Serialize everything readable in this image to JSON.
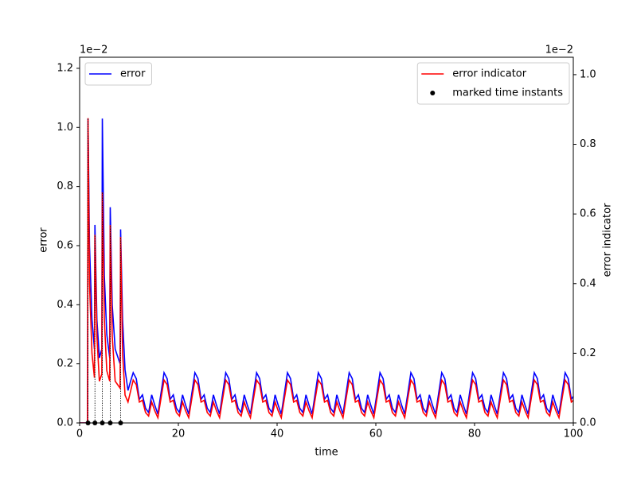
{
  "chart_data": {
    "type": "line",
    "xlabel": "time",
    "ylabel": "error",
    "y2label": "error indicator",
    "y_offset_label": "1e−2",
    "y2_offset_label": "1e−2",
    "xlim": [
      0,
      100
    ],
    "xticks": [
      0,
      20,
      40,
      60,
      80,
      100
    ],
    "ylim": [
      0,
      1.2375
    ],
    "yticks": [
      {
        "value": 0,
        "label": "0.0"
      },
      0.2,
      0.4,
      0.6,
      0.8,
      {
        "value": 1,
        "label": "1.0"
      },
      1.2
    ],
    "y2lim": [
      0,
      1.05
    ],
    "y2ticks": [
      {
        "value": 0,
        "label": "0.0"
      },
      0.2,
      0.4,
      0.6,
      0.8,
      {
        "value": 1,
        "label": "1.0"
      }
    ],
    "legend": {
      "y": "upper left",
      "y2": "upper right"
    },
    "x": [
      0,
      1.6,
      1.7,
      2.0,
      2.5,
      3.0,
      3.1,
      3.5,
      4.0,
      4.5,
      4.6,
      5.0,
      5.5,
      6.1,
      6.2,
      6.6,
      7.2,
      8.2,
      8.3,
      8.7,
      9.2,
      9.8,
      10.3,
      10.85,
      11.475,
      12.1,
      12.725,
      13.35,
      13.975,
      14.6,
      15.225,
      15.85,
      16.475,
      17.1,
      17.725,
      18.35,
      18.975,
      19.6,
      20.225,
      20.85,
      21.475,
      22.1,
      22.725,
      23.35,
      23.975,
      24.6,
      25.225,
      25.85,
      26.475,
      27.1,
      27.725,
      28.35,
      28.975,
      29.6,
      30.225,
      30.85,
      31.475,
      32.1,
      32.725,
      33.35,
      33.975,
      34.6,
      35.225,
      35.85,
      36.475,
      37.1,
      37.725,
      38.35,
      38.975,
      39.6,
      40.225,
      40.85,
      41.475,
      42.1,
      42.725,
      43.35,
      43.975,
      44.6,
      45.225,
      45.85,
      46.475,
      47.1,
      47.725,
      48.35,
      48.975,
      49.6,
      50.225,
      50.85,
      51.475,
      52.1,
      52.725,
      53.35,
      53.975,
      54.6,
      55.225,
      55.85,
      56.475,
      57.1,
      57.725,
      58.35,
      58.975,
      59.6,
      60.225,
      60.85,
      61.475,
      62.1,
      62.725,
      63.35,
      63.975,
      64.6,
      65.225,
      65.85,
      66.475,
      67.1,
      67.725,
      68.35,
      68.975,
      69.6,
      70.225,
      70.85,
      71.475,
      72.1,
      72.725,
      73.35,
      73.975,
      74.6,
      75.225,
      75.85,
      76.475,
      77.1,
      77.725,
      78.35,
      78.975,
      79.6,
      80.225,
      80.85,
      81.475,
      82.1,
      82.725,
      83.35,
      83.975,
      84.6,
      85.225,
      85.85,
      86.475,
      87.1,
      87.725,
      88.35,
      88.975,
      89.6,
      90.225,
      90.85,
      91.475,
      92.1,
      92.725,
      93.35,
      93.975,
      94.6,
      95.225,
      95.85,
      96.475,
      97.1,
      97.725,
      98.35,
      98.975,
      99.6,
      100
    ],
    "series": [
      {
        "name": "error",
        "color": "#0000ff",
        "axis": "y",
        "values": [
          0,
          0,
          1.03,
          0.6,
          0.35,
          0.25,
          0.67,
          0.35,
          0.22,
          0.25,
          1.03,
          0.5,
          0.3,
          0.22,
          0.73,
          0.4,
          0.25,
          0.2,
          0.655,
          0.35,
          0.18,
          0.11,
          0.14,
          0.17,
          0.15,
          0.08,
          0.095,
          0.05,
          0.035,
          0.095,
          0.06,
          0.03,
          0.1,
          0.17,
          0.15,
          0.08,
          0.095,
          0.05,
          0.035,
          0.095,
          0.06,
          0.03,
          0.1,
          0.17,
          0.15,
          0.08,
          0.095,
          0.05,
          0.035,
          0.095,
          0.06,
          0.03,
          0.1,
          0.17,
          0.15,
          0.08,
          0.095,
          0.05,
          0.035,
          0.095,
          0.06,
          0.03,
          0.1,
          0.17,
          0.15,
          0.08,
          0.095,
          0.05,
          0.035,
          0.095,
          0.06,
          0.03,
          0.1,
          0.17,
          0.15,
          0.08,
          0.095,
          0.05,
          0.035,
          0.095,
          0.06,
          0.03,
          0.1,
          0.17,
          0.15,
          0.08,
          0.095,
          0.05,
          0.035,
          0.095,
          0.06,
          0.03,
          0.1,
          0.17,
          0.15,
          0.08,
          0.095,
          0.05,
          0.035,
          0.095,
          0.06,
          0.03,
          0.1,
          0.17,
          0.15,
          0.08,
          0.095,
          0.05,
          0.035,
          0.095,
          0.06,
          0.03,
          0.1,
          0.17,
          0.15,
          0.08,
          0.095,
          0.05,
          0.035,
          0.095,
          0.06,
          0.03,
          0.1,
          0.17,
          0.15,
          0.08,
          0.095,
          0.05,
          0.035,
          0.095,
          0.06,
          0.03,
          0.1,
          0.17,
          0.15,
          0.08,
          0.095,
          0.05,
          0.035,
          0.095,
          0.06,
          0.03,
          0.1,
          0.17,
          0.15,
          0.08,
          0.095,
          0.05,
          0.035,
          0.095,
          0.06,
          0.03,
          0.1,
          0.17,
          0.15,
          0.08,
          0.095,
          0.05,
          0.035,
          0.095,
          0.06,
          0.03,
          0.1,
          0.17,
          0.15,
          0.08,
          0.09
        ]
      },
      {
        "name": "error indicator",
        "color": "#ff0000",
        "axis": "y2",
        "values": [
          0,
          0,
          0.875,
          0.4,
          0.2,
          0.13,
          0.54,
          0.25,
          0.12,
          0.14,
          0.662,
          0.3,
          0.15,
          0.12,
          0.568,
          0.25,
          0.12,
          0.1,
          0.534,
          0.2,
          0.08,
          0.06,
          0.09,
          0.123,
          0.11,
          0.06,
          0.065,
          0.03,
          0.02,
          0.06,
          0.035,
          0.015,
          0.07,
          0.123,
          0.11,
          0.06,
          0.065,
          0.03,
          0.02,
          0.06,
          0.035,
          0.015,
          0.07,
          0.123,
          0.11,
          0.06,
          0.065,
          0.03,
          0.02,
          0.06,
          0.035,
          0.015,
          0.07,
          0.123,
          0.11,
          0.06,
          0.065,
          0.03,
          0.02,
          0.06,
          0.035,
          0.015,
          0.07,
          0.123,
          0.11,
          0.06,
          0.065,
          0.03,
          0.02,
          0.06,
          0.035,
          0.015,
          0.07,
          0.123,
          0.11,
          0.06,
          0.065,
          0.03,
          0.02,
          0.06,
          0.035,
          0.015,
          0.07,
          0.123,
          0.11,
          0.06,
          0.065,
          0.03,
          0.02,
          0.06,
          0.035,
          0.015,
          0.07,
          0.123,
          0.11,
          0.06,
          0.065,
          0.03,
          0.02,
          0.06,
          0.035,
          0.015,
          0.07,
          0.123,
          0.11,
          0.06,
          0.065,
          0.03,
          0.02,
          0.06,
          0.035,
          0.015,
          0.07,
          0.123,
          0.11,
          0.06,
          0.065,
          0.03,
          0.02,
          0.06,
          0.035,
          0.015,
          0.07,
          0.123,
          0.11,
          0.06,
          0.065,
          0.03,
          0.02,
          0.06,
          0.035,
          0.015,
          0.07,
          0.123,
          0.11,
          0.06,
          0.065,
          0.03,
          0.02,
          0.06,
          0.035,
          0.015,
          0.07,
          0.123,
          0.11,
          0.06,
          0.065,
          0.03,
          0.02,
          0.06,
          0.035,
          0.015,
          0.07,
          0.123,
          0.11,
          0.06,
          0.065,
          0.03,
          0.02,
          0.06,
          0.035,
          0.015,
          0.07,
          0.123,
          0.11,
          0.06,
          0.065
        ]
      },
      {
        "name": "marked time instants",
        "color": "#000000",
        "type": "scatter",
        "axis": "y2",
        "x": [
          1.7,
          3.1,
          4.6,
          6.2,
          8.3
        ],
        "values": [
          0,
          0,
          0,
          0,
          0
        ]
      }
    ]
  }
}
